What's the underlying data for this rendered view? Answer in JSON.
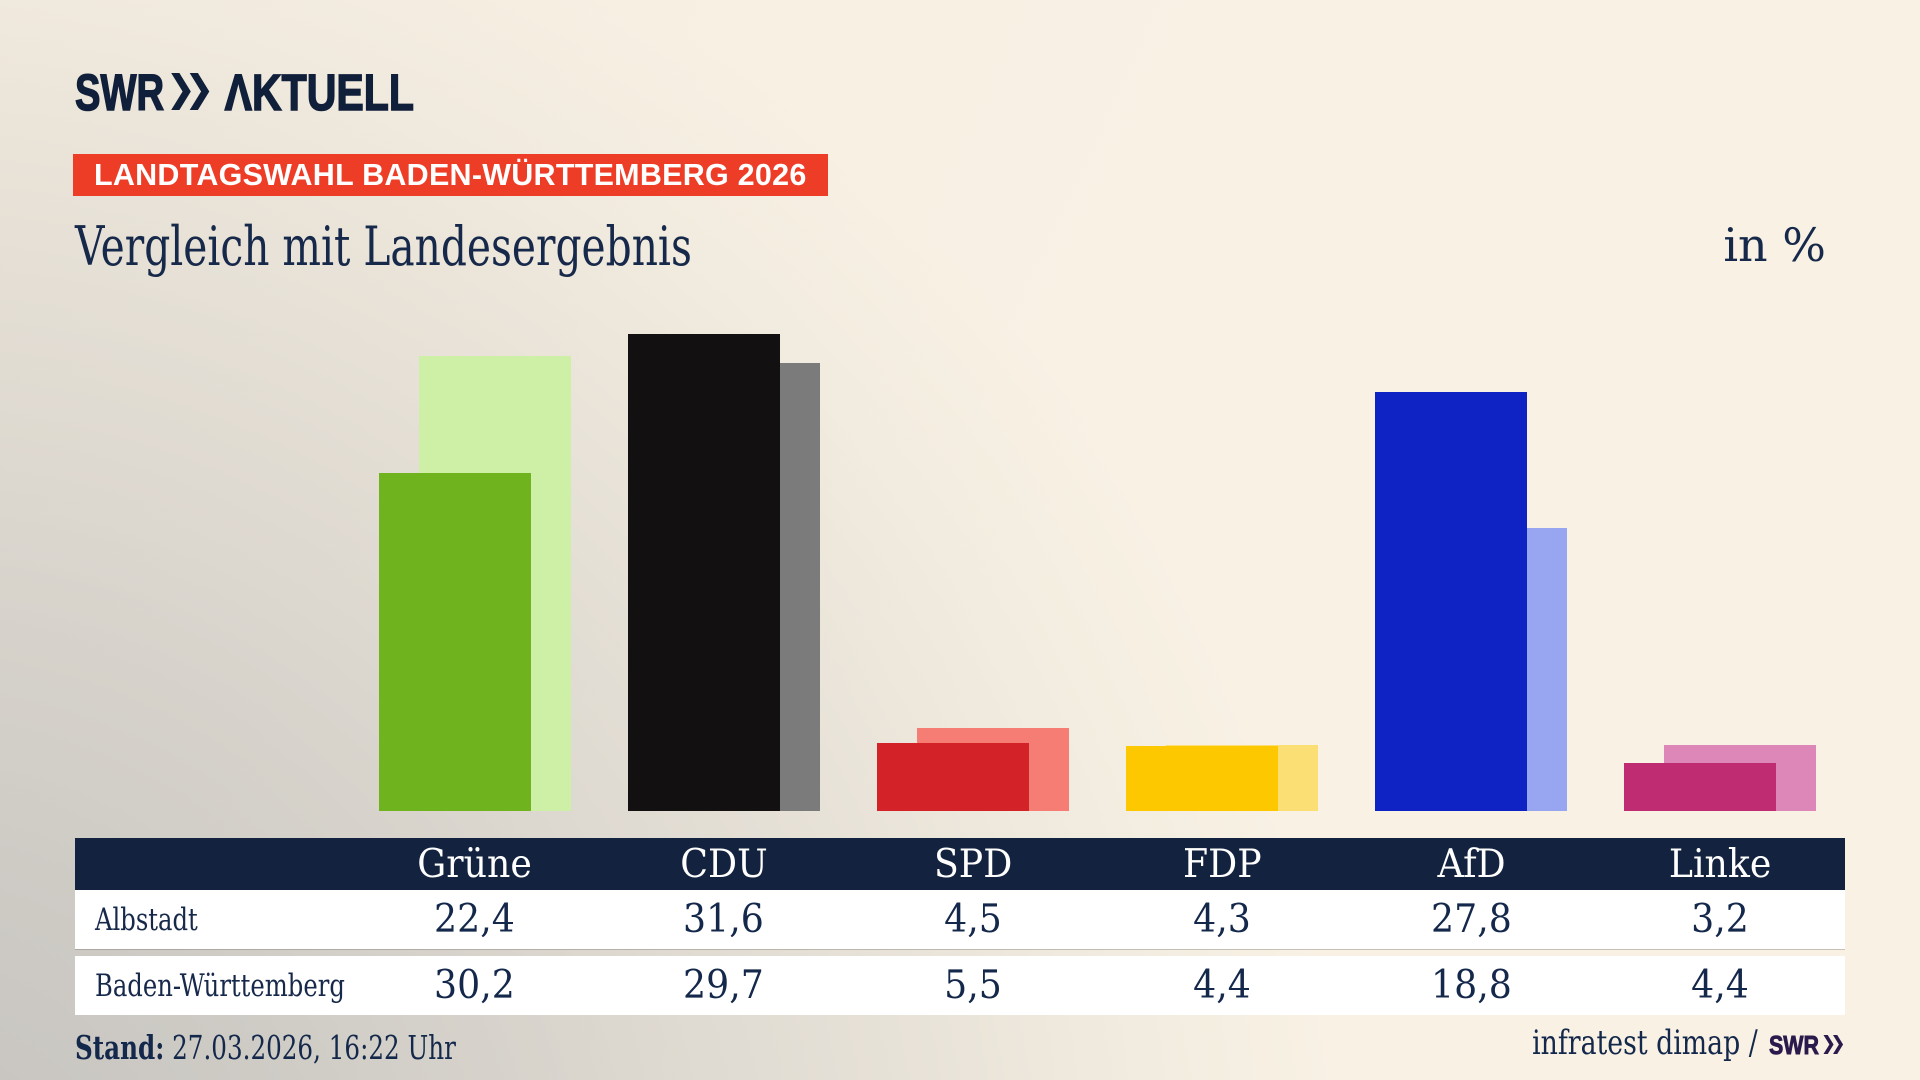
{
  "brand": {
    "logo_swr": "SWR",
    "logo_aktuell": "ΛKTUELL"
  },
  "header": {
    "badge": "LANDTAGSWAHL BADEN-WÜRTTEMBERG 2026",
    "title": "Vergleich mit Landesergebnis",
    "unit_label": "in %"
  },
  "footer": {
    "stand_label": "Stand:",
    "stand_value": "27.03.2026, 16:22 Uhr",
    "source_text": "infratest dimap /",
    "source_logo": "SWR"
  },
  "colors": {
    "background_light": "#f8f1e4",
    "background_dark": "#c0beba",
    "badge_red": "#ee3d27",
    "navy_dark": "#13233f",
    "text_navy": "#17294a",
    "footer_logo_indigo": "#2b1b4d",
    "white": "#ffffff"
  },
  "chart_data": {
    "type": "bar",
    "title": "Vergleich mit Landesergebnis",
    "unit": "in %",
    "categories": [
      "Grüne",
      "CDU",
      "SPD",
      "FDP",
      "AfD",
      "Linke"
    ],
    "series": [
      {
        "name": "Albstadt",
        "values": [
          22.4,
          31.6,
          4.5,
          4.3,
          27.8,
          3.2
        ],
        "labels": [
          "22,4",
          "31,6",
          "4,5",
          "4,3",
          "27,8",
          "3,2"
        ]
      },
      {
        "name": "Baden-Württemberg",
        "values": [
          30.2,
          29.7,
          5.5,
          4.4,
          18.8,
          4.4
        ],
        "labels": [
          "30,2",
          "29,7",
          "5,5",
          "4,4",
          "18,8",
          "4,4"
        ]
      }
    ],
    "bar_colors": {
      "albstadt": [
        "#6fb41e",
        "#131011",
        "#d42328",
        "#fdc800",
        "#0f22c4",
        "#bf2c71"
      ],
      "land": [
        "#cdf0a6",
        "#7b7b7b",
        "#f57d73",
        "#fcdf74",
        "#98a5f1",
        "#dc87b7"
      ]
    },
    "ylim": [
      0,
      33
    ],
    "legend_position": "table",
    "grid": false
  }
}
